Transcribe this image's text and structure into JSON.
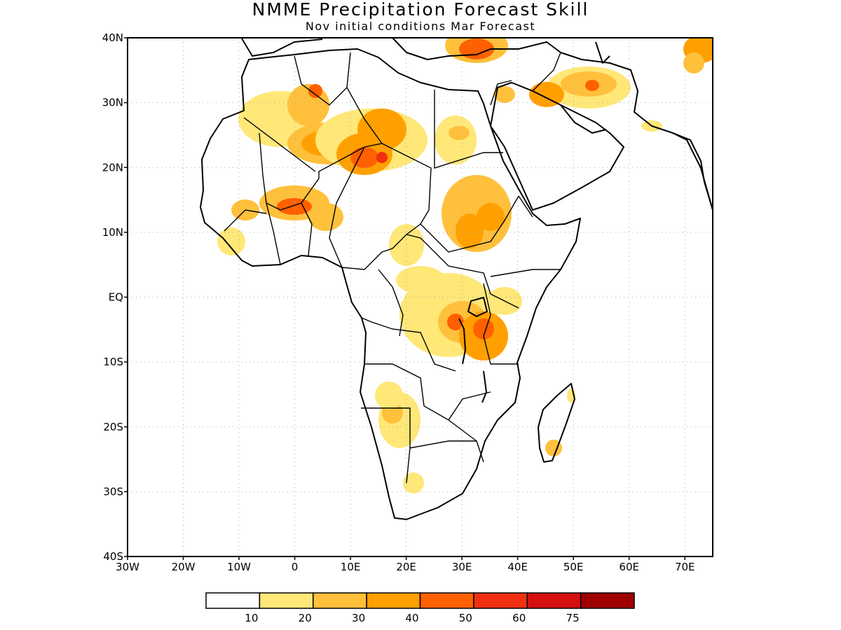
{
  "title": "NMME Precipitation Forecast Skill",
  "subtitle": "Nov initial conditions  Mar Forecast",
  "map": {
    "lon_range": [
      -30,
      75
    ],
    "lat_range": [
      -40,
      40
    ],
    "lat_labels": [
      "40N",
      "30N",
      "20N",
      "10N",
      "EQ",
      "10S",
      "20S",
      "30S",
      "40S"
    ],
    "lat_values": [
      40,
      30,
      20,
      10,
      0,
      -10,
      -20,
      -30,
      -40
    ],
    "lon_labels": [
      "30W",
      "20W",
      "10W",
      "0",
      "10E",
      "20E",
      "30E",
      "40E",
      "50E",
      "60E",
      "70E"
    ],
    "lon_values": [
      -30,
      -20,
      -10,
      0,
      10,
      20,
      30,
      40,
      50,
      60,
      70
    ],
    "gridlines": "dotted"
  },
  "colorbar": {
    "labels": [
      "10",
      "20",
      "30",
      "40",
      "50",
      "60",
      "75"
    ],
    "colors": [
      "#ffffff",
      "#ffe778",
      "#ffc03c",
      "#ffa000",
      "#ff6000",
      "#f03010",
      "#d41010",
      "#a00000"
    ]
  }
}
